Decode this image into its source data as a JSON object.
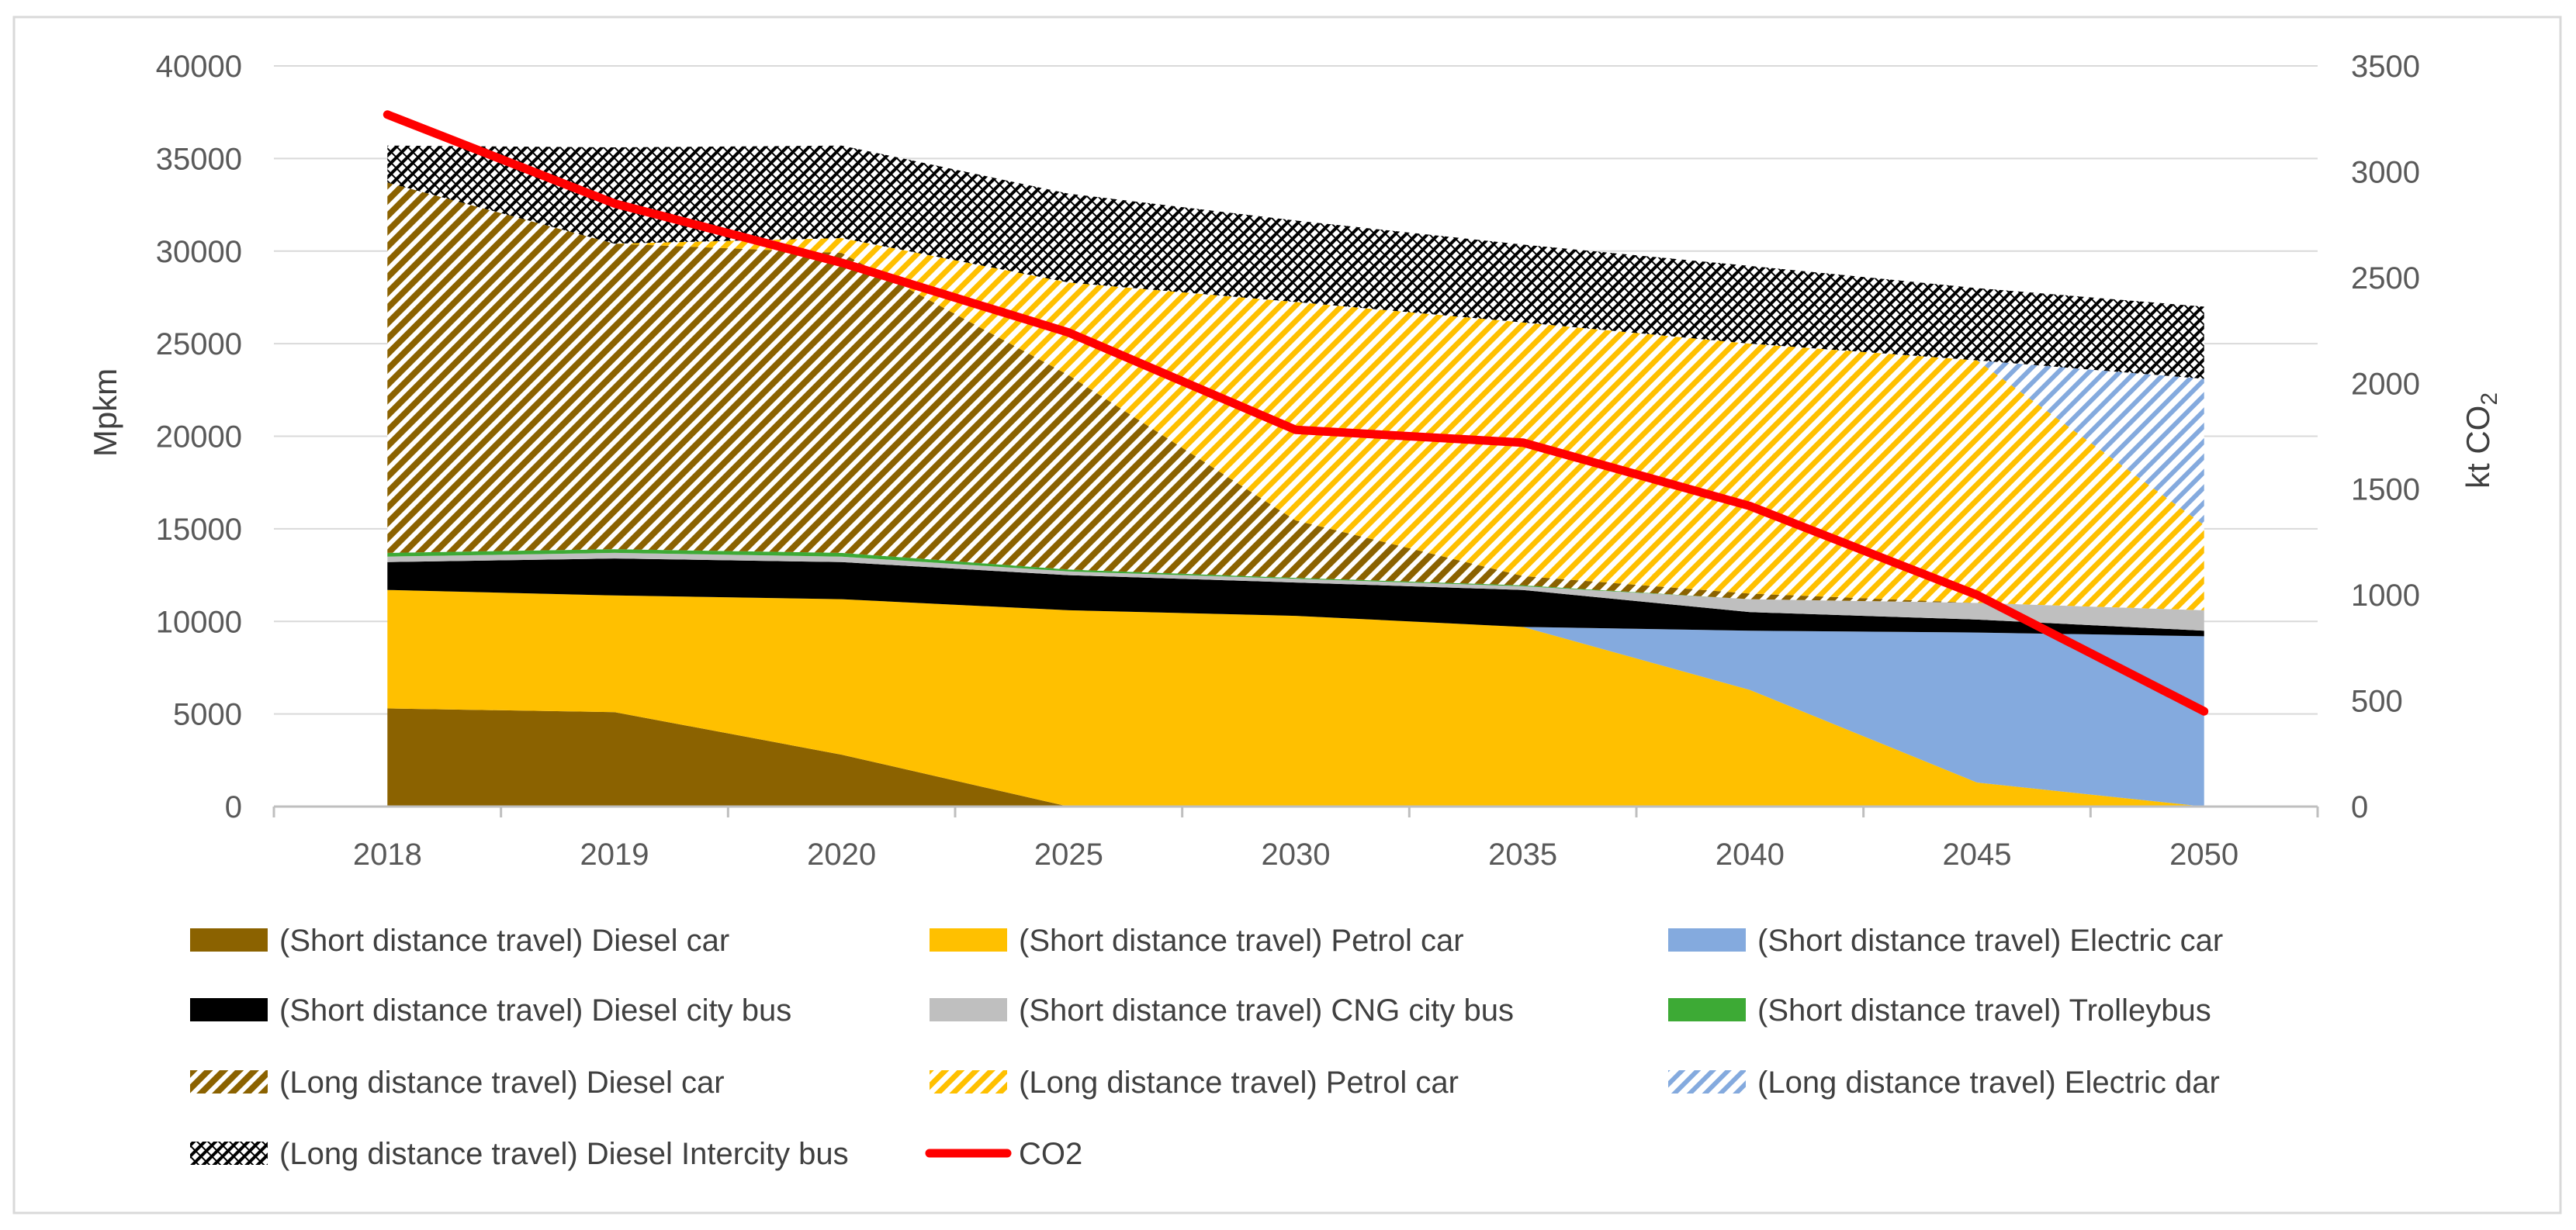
{
  "chart_data": {
    "type": "area",
    "categories": [
      "2018",
      "2019",
      "2020",
      "2025",
      "2030",
      "2035",
      "2040",
      "2045",
      "2050"
    ],
    "ylabel": "Mpkm",
    "y2label_main": "kt CO",
    "y2label_sub": "2",
    "ylim": [
      0,
      40000
    ],
    "yticks": [
      "0",
      "5000",
      "10000",
      "15000",
      "20000",
      "25000",
      "30000",
      "35000",
      "40000"
    ],
    "y2lim": [
      0,
      3500
    ],
    "y2ticks": [
      "0",
      "500",
      "1000",
      "1500",
      "2000",
      "2500",
      "3000",
      "3500"
    ],
    "grid": true,
    "legend_position": "bottom",
    "series": [
      {
        "key": "sdc",
        "name": "(Short distance travel) Diesel car",
        "values": [
          5300,
          5100,
          2800,
          0,
          0,
          0,
          0,
          0,
          0
        ],
        "color": "#8B6200",
        "pattern": "solid"
      },
      {
        "key": "spc",
        "name": "(Short distance travel) Petrol car",
        "values": [
          6400,
          6300,
          8400,
          10600,
          10300,
          9700,
          6300,
          1300,
          0
        ],
        "color": "#FFC000",
        "pattern": "solid"
      },
      {
        "key": "sec",
        "name": "(Short distance travel) Electric car",
        "values": [
          0,
          0,
          0,
          0,
          0,
          0,
          3200,
          8100,
          9200
        ],
        "color": "#84AADE",
        "pattern": "solid"
      },
      {
        "key": "sdb",
        "name": "(Short distance travel) Diesel city bus",
        "values": [
          1500,
          2000,
          2000,
          1900,
          1800,
          2000,
          1000,
          700,
          300
        ],
        "color": "#000000",
        "pattern": "solid"
      },
      {
        "key": "scng",
        "name": "(Short distance travel) CNG city bus",
        "values": [
          300,
          300,
          300,
          200,
          200,
          200,
          700,
          900,
          1100
        ],
        "color": "#BFBFBF",
        "pattern": "solid"
      },
      {
        "key": "str",
        "name": "(Short distance travel) Trolleybus",
        "values": [
          200,
          200,
          200,
          100,
          50,
          50,
          0,
          0,
          0
        ],
        "color": "#3DAA35",
        "pattern": "solid"
      },
      {
        "key": "ldc",
        "name": "(Long distance travel) Diesel car",
        "values": [
          20000,
          16500,
          16200,
          10500,
          3100,
          500,
          300,
          0,
          0
        ],
        "color": "#8B6200",
        "pattern": "hatch"
      },
      {
        "key": "lpc",
        "name": "(Long distance travel) Petrol car",
        "values": [
          0,
          0,
          800,
          5000,
          11800,
          13700,
          13500,
          13100,
          4600
        ],
        "color": "#FFC000",
        "pattern": "hatch"
      },
      {
        "key": "lec",
        "name": "(Long distance travel) Electric dar",
        "values": [
          0,
          0,
          0,
          0,
          0,
          0,
          0,
          0,
          7900
        ],
        "color": "#84AADE",
        "pattern": "hatch"
      },
      {
        "key": "lbus",
        "name": "(Long distance travel) Diesel Intercity bus",
        "values": [
          2000,
          5200,
          5000,
          4800,
          4400,
          4200,
          4200,
          3900,
          3900
        ],
        "color": "#000000",
        "pattern": "crosshatch"
      }
    ],
    "line_series": {
      "key": "co2",
      "name": "CO2",
      "axis": "secondary",
      "values": [
        3270,
        2850,
        2570,
        2240,
        1780,
        1720,
        1420,
        1000,
        450
      ],
      "color": "#FF0000"
    }
  }
}
